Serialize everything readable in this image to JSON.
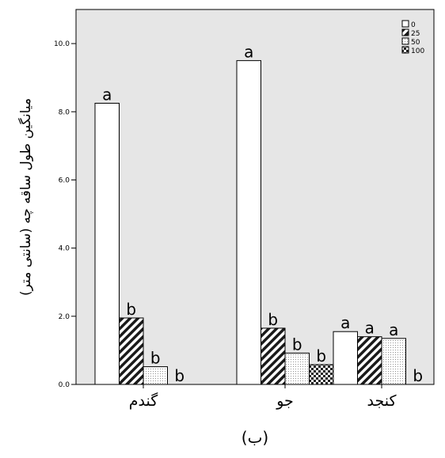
{
  "chart_data": {
    "type": "bar",
    "categories": [
      "گندم",
      "جو",
      "کنجد"
    ],
    "series": [
      {
        "name": "0",
        "values": [
          8.25,
          9.5,
          1.55
        ],
        "letters": [
          "a",
          "a",
          "a"
        ]
      },
      {
        "name": "25",
        "values": [
          1.95,
          1.65,
          1.4
        ],
        "letters": [
          "b",
          "b",
          "a"
        ]
      },
      {
        "name": "50",
        "values": [
          0.52,
          0.92,
          1.35
        ],
        "letters": [
          "b",
          "b",
          "a"
        ]
      },
      {
        "name": "100",
        "values": [
          0.0,
          0.58,
          0.0
        ],
        "letters": [
          "b",
          "b",
          "b"
        ]
      }
    ],
    "ylabel": "میانگین طول ساقه چه (سانتی متر)",
    "xlabel": "",
    "yticks": [
      "0.0",
      "2.0",
      "4.0",
      "6.0",
      "8.0",
      "10.0"
    ],
    "ylim": [
      0,
      11
    ],
    "grid": false,
    "legend_position": "top-right",
    "caption": "(ب)",
    "colors": {
      "plot_background": "#e6e6e6",
      "bar_outline": "#000000",
      "bar_fill_0": "#ffffff"
    },
    "patterns": [
      "solid-white",
      "diagonal-hatch",
      "dots",
      "checker"
    ]
  }
}
